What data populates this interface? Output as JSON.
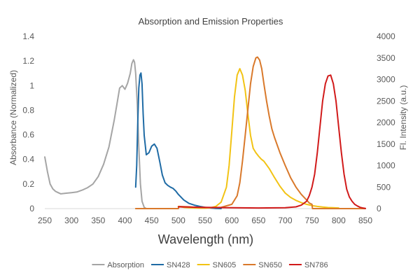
{
  "chart_data": {
    "type": "line",
    "title": "Absorption and Emission Properties",
    "xlabel": "Wavelength (nm)",
    "ylabel": "Absorbance (Normalized)",
    "y2label": "Fl. Intensity (a.u.)",
    "xlim": [
      250,
      850
    ],
    "ylim": [
      0,
      1.4
    ],
    "y2lim": [
      0,
      4000
    ],
    "x_ticks": [
      250,
      300,
      350,
      400,
      450,
      500,
      550,
      600,
      650,
      700,
      750,
      800,
      850
    ],
    "y_ticks": [
      0,
      0.2,
      0.4,
      0.6,
      0.8,
      1,
      1.2,
      1.4
    ],
    "y2_ticks": [
      0,
      500,
      1000,
      1500,
      2000,
      2500,
      3000,
      3500,
      4000
    ],
    "y_tick_labels": [
      "0",
      "0.2",
      "0.4",
      "0.6",
      "0.8",
      "1",
      "1.2",
      "1.4"
    ],
    "grid": false,
    "legend_position": "bottom",
    "series": [
      {
        "name": "Absorption",
        "axis": "left",
        "color": "#A5A5A5",
        "points": [
          [
            250,
            0.42
          ],
          [
            255,
            0.3
          ],
          [
            260,
            0.2
          ],
          [
            265,
            0.16
          ],
          [
            270,
            0.14
          ],
          [
            275,
            0.13
          ],
          [
            280,
            0.12
          ],
          [
            290,
            0.125
          ],
          [
            300,
            0.13
          ],
          [
            310,
            0.135
          ],
          [
            320,
            0.15
          ],
          [
            330,
            0.17
          ],
          [
            340,
            0.2
          ],
          [
            350,
            0.26
          ],
          [
            360,
            0.36
          ],
          [
            370,
            0.5
          ],
          [
            380,
            0.72
          ],
          [
            385,
            0.85
          ],
          [
            390,
            0.98
          ],
          [
            395,
            1.0
          ],
          [
            400,
            0.97
          ],
          [
            405,
            1.02
          ],
          [
            410,
            1.1
          ],
          [
            413,
            1.18
          ],
          [
            416,
            1.21
          ],
          [
            418,
            1.19
          ],
          [
            420,
            1.1
          ],
          [
            423,
            0.85
          ],
          [
            426,
            0.5
          ],
          [
            429,
            0.2
          ],
          [
            432,
            0.06
          ],
          [
            436,
            0.01
          ],
          [
            440,
            0.0
          ],
          [
            450,
            0.0
          ]
        ]
      },
      {
        "name": "SN428",
        "axis": "right",
        "color": "#1F6BA5",
        "points": [
          [
            420,
            500
          ],
          [
            422,
            1000
          ],
          [
            424,
            2000
          ],
          [
            426,
            2800
          ],
          [
            428,
            3100
          ],
          [
            430,
            3150
          ],
          [
            432,
            2900
          ],
          [
            434,
            2200
          ],
          [
            436,
            1700
          ],
          [
            440,
            1250
          ],
          [
            445,
            1300
          ],
          [
            450,
            1450
          ],
          [
            455,
            1500
          ],
          [
            460,
            1400
          ],
          [
            465,
            1100
          ],
          [
            470,
            780
          ],
          [
            475,
            600
          ],
          [
            480,
            540
          ],
          [
            485,
            500
          ],
          [
            490,
            470
          ],
          [
            495,
            410
          ],
          [
            500,
            330
          ],
          [
            510,
            200
          ],
          [
            520,
            120
          ],
          [
            530,
            80
          ],
          [
            540,
            50
          ],
          [
            550,
            30
          ],
          [
            560,
            15
          ],
          [
            570,
            5
          ],
          [
            580,
            0
          ]
        ]
      },
      {
        "name": "SN605",
        "axis": "right",
        "color": "#F2C314",
        "points": [
          [
            500,
            50
          ],
          [
            505,
            40
          ],
          [
            510,
            30
          ],
          [
            520,
            20
          ],
          [
            530,
            15
          ],
          [
            540,
            10
          ],
          [
            550,
            10
          ],
          [
            560,
            20
          ],
          [
            570,
            50
          ],
          [
            580,
            150
          ],
          [
            590,
            500
          ],
          [
            595,
            1000
          ],
          [
            600,
            1800
          ],
          [
            605,
            2600
          ],
          [
            610,
            3100
          ],
          [
            615,
            3250
          ],
          [
            620,
            3100
          ],
          [
            625,
            2750
          ],
          [
            630,
            2200
          ],
          [
            635,
            1700
          ],
          [
            640,
            1400
          ],
          [
            645,
            1300
          ],
          [
            650,
            1220
          ],
          [
            655,
            1150
          ],
          [
            660,
            1100
          ],
          [
            670,
            930
          ],
          [
            680,
            720
          ],
          [
            690,
            520
          ],
          [
            700,
            360
          ],
          [
            710,
            260
          ],
          [
            720,
            190
          ],
          [
            730,
            140
          ],
          [
            740,
            100
          ],
          [
            750,
            70
          ],
          [
            760,
            50
          ],
          [
            770,
            35
          ],
          [
            780,
            25
          ],
          [
            790,
            20
          ],
          [
            800,
            15
          ]
        ]
      },
      {
        "name": "SN650",
        "axis": "right",
        "color": "#D9792B",
        "points": [
          [
            420,
            0
          ],
          [
            450,
            0
          ],
          [
            490,
            0
          ],
          [
            500,
            0
          ],
          [
            501,
            50
          ],
          [
            510,
            45
          ],
          [
            520,
            40
          ],
          [
            530,
            30
          ],
          [
            540,
            25
          ],
          [
            560,
            20
          ],
          [
            580,
            30
          ],
          [
            600,
            100
          ],
          [
            610,
            300
          ],
          [
            615,
            600
          ],
          [
            620,
            1100
          ],
          [
            625,
            1700
          ],
          [
            630,
            2300
          ],
          [
            635,
            2900
          ],
          [
            640,
            3300
          ],
          [
            645,
            3500
          ],
          [
            648,
            3520
          ],
          [
            652,
            3450
          ],
          [
            656,
            3250
          ],
          [
            660,
            2900
          ],
          [
            665,
            2500
          ],
          [
            670,
            2150
          ],
          [
            675,
            1850
          ],
          [
            680,
            1650
          ],
          [
            690,
            1300
          ],
          [
            700,
            1000
          ],
          [
            710,
            720
          ],
          [
            720,
            500
          ],
          [
            730,
            330
          ],
          [
            740,
            200
          ],
          [
            745,
            130
          ],
          [
            750,
            100
          ],
          [
            751,
            0
          ],
          [
            770,
            0
          ],
          [
            800,
            0
          ],
          [
            850,
            0
          ]
        ]
      },
      {
        "name": "SN786",
        "axis": "right",
        "color": "#D11A1A",
        "points": [
          [
            500,
            40
          ],
          [
            550,
            30
          ],
          [
            600,
            20
          ],
          [
            650,
            15
          ],
          [
            700,
            20
          ],
          [
            720,
            40
          ],
          [
            730,
            80
          ],
          [
            740,
            170
          ],
          [
            745,
            300
          ],
          [
            750,
            500
          ],
          [
            755,
            800
          ],
          [
            760,
            1300
          ],
          [
            765,
            1900
          ],
          [
            770,
            2500
          ],
          [
            775,
            2900
          ],
          [
            780,
            3080
          ],
          [
            785,
            3100
          ],
          [
            790,
            2900
          ],
          [
            795,
            2500
          ],
          [
            800,
            1900
          ],
          [
            805,
            1300
          ],
          [
            810,
            800
          ],
          [
            815,
            450
          ],
          [
            820,
            270
          ],
          [
            825,
            170
          ],
          [
            830,
            100
          ],
          [
            835,
            60
          ],
          [
            840,
            30
          ],
          [
            845,
            15
          ],
          [
            850,
            5
          ]
        ]
      }
    ]
  }
}
